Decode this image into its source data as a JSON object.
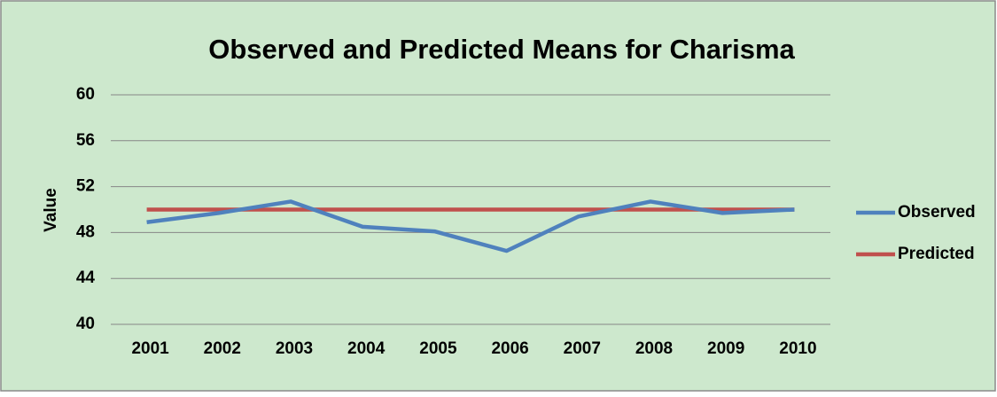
{
  "chart_data": {
    "type": "line",
    "title": "Observed and Predicted Means for Charisma",
    "y_label": "Value",
    "categories": [
      "2001",
      "2002",
      "2003",
      "2004",
      "2005",
      "2006",
      "2007",
      "2008",
      "2009",
      "2010"
    ],
    "series": [
      {
        "name": "Observed",
        "color": "#4f81bd",
        "values": [
          48.9,
          49.7,
          50.7,
          48.5,
          48.1,
          46.4,
          49.4,
          50.7,
          49.7,
          50.0
        ]
      },
      {
        "name": "Predicted",
        "color": "#c0504d",
        "values": [
          50,
          50,
          50,
          50,
          50,
          50,
          50,
          50,
          50,
          50
        ]
      }
    ],
    "ylim": [
      40,
      60
    ],
    "yticks": [
      40,
      44,
      48,
      52,
      56,
      60
    ],
    "grid": true,
    "legend": "right"
  }
}
